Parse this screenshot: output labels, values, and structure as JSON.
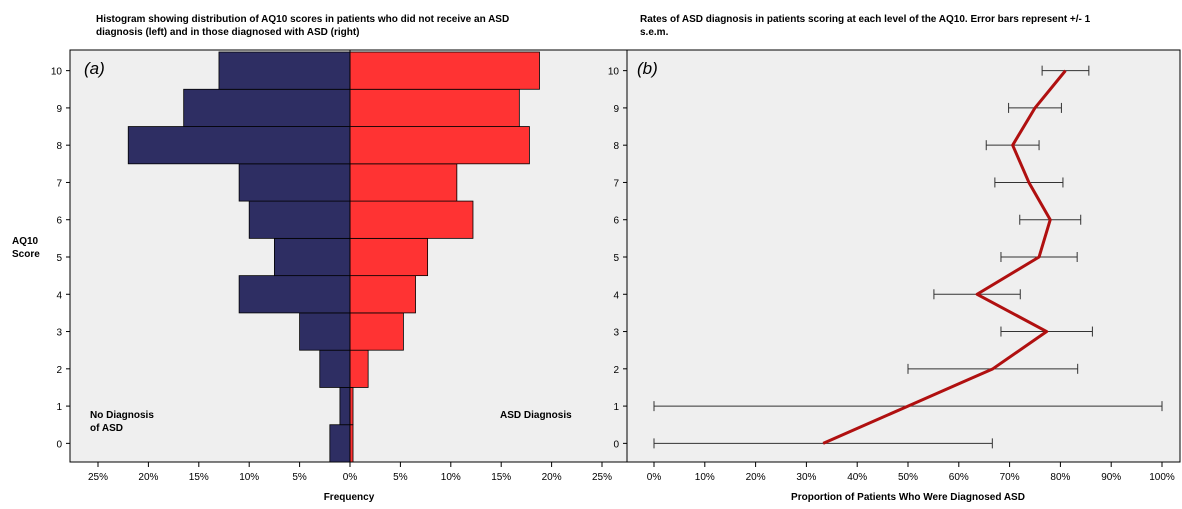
{
  "chart_data": [
    {
      "type": "bar",
      "orientation": "horizontal-back-to-back",
      "panel_label": "(a)",
      "title": "Histogram showing distribution of AQ10 scores in patients who did not receive an ASD diagnosis  (left)  and in those diagnosed with ASD (right)",
      "xlabel": "Frequency",
      "ylabel": "AQ10 Score",
      "categories": [
        "0",
        "1",
        "2",
        "3",
        "4",
        "5",
        "6",
        "7",
        "8",
        "9",
        "10"
      ],
      "xlim": [
        -25,
        25
      ],
      "xticks": [
        "25%",
        "20%",
        "15%",
        "10%",
        "5%",
        "0%",
        "5%",
        "10%",
        "15%",
        "20%",
        "25%"
      ],
      "series": [
        {
          "name": "No Diagnosis of ASD",
          "label_lines": [
            "No Diagnosis",
            "of ASD"
          ],
          "color": "#2e2e63",
          "side": "left",
          "values": [
            2.0,
            1.0,
            3.0,
            5.0,
            11.0,
            7.5,
            10.0,
            11.0,
            22.0,
            16.5,
            13.0
          ]
        },
        {
          "name": "ASD Diagnosis",
          "label_lines": [
            "ASD Diagnosis"
          ],
          "color": "#ff3333",
          "side": "right",
          "values": [
            0.3,
            0.3,
            1.8,
            5.3,
            6.5,
            7.7,
            12.2,
            10.6,
            17.8,
            16.8,
            18.8
          ]
        }
      ],
      "grid": false,
      "background": "#efefef"
    },
    {
      "type": "line",
      "orientation": "horizontal",
      "panel_label": "(b)",
      "title": "Rates of ASD diagnosis in patients scoring at each level of the AQ10. Error bars represent +/- 1 s.e.m.",
      "xlabel": "Proportion of Patients Who Were Diagnosed ASD",
      "ylabel": "",
      "categories": [
        "0",
        "1",
        "2",
        "3",
        "4",
        "5",
        "6",
        "7",
        "8",
        "9",
        "10"
      ],
      "xlim": [
        0,
        100
      ],
      "xticks": [
        "0%",
        "10%",
        "20%",
        "30%",
        "40%",
        "50%",
        "60%",
        "70%",
        "80%",
        "90%",
        "100%"
      ],
      "series": [
        {
          "color": "#b01010",
          "values": [
            33.3,
            50.0,
            66.7,
            77.3,
            63.6,
            75.8,
            78.0,
            73.8,
            70.6,
            75.0,
            81.0
          ],
          "error": [
            33.3,
            50.0,
            16.7,
            9.0,
            8.5,
            7.5,
            6.0,
            6.7,
            5.2,
            5.2,
            4.6
          ]
        }
      ],
      "grid": false,
      "background": "#efefef"
    }
  ]
}
